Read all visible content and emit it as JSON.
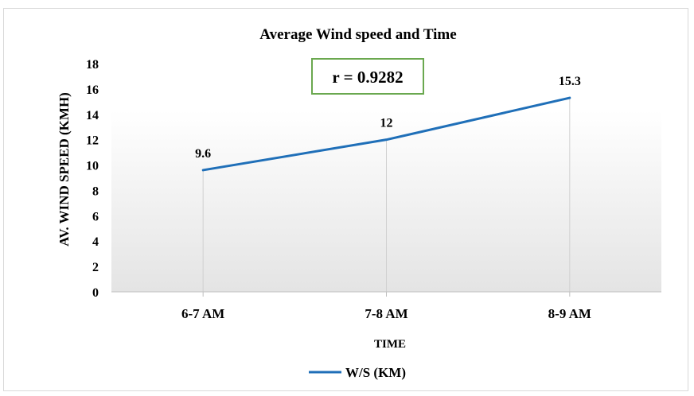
{
  "chart_data": {
    "type": "line",
    "title": "Average Wind speed and Time",
    "xlabel": "TIME",
    "ylabel": "AV. WIND SPEED (KMH)",
    "categories": [
      "6-7 AM",
      "7-8 AM",
      "8-9 AM"
    ],
    "series": [
      {
        "name": "W/S (KM)",
        "values": [
          9.6,
          12,
          15.3
        ],
        "data_labels": [
          "9.6",
          "12",
          "15.3"
        ],
        "color": "#1f6fb8"
      }
    ],
    "ylim": [
      0,
      18
    ],
    "yticks": [
      0,
      2,
      4,
      6,
      8,
      10,
      12,
      14,
      16,
      18
    ],
    "ytick_labels": [
      "0",
      "2",
      "4",
      "6",
      "8",
      "10",
      "12",
      "14",
      "16",
      "18"
    ],
    "grid": false,
    "drop_lines": true,
    "legend_position": "bottom",
    "annotation": {
      "text": "r = 0.9282",
      "border_color": "#6aa84f"
    },
    "background_gradient": [
      "#ffffff",
      "#e4e4e4"
    ]
  }
}
